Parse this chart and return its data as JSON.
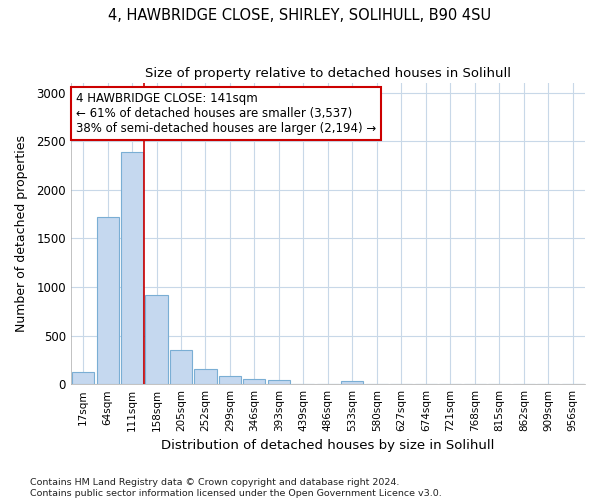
{
  "title1": "4, HAWBRIDGE CLOSE, SHIRLEY, SOLIHULL, B90 4SU",
  "title2": "Size of property relative to detached houses in Solihull",
  "xlabel": "Distribution of detached houses by size in Solihull",
  "ylabel": "Number of detached properties",
  "bar_color": "#c5d8ef",
  "bar_edge_color": "#7aaed4",
  "categories": [
    "17sqm",
    "64sqm",
    "111sqm",
    "158sqm",
    "205sqm",
    "252sqm",
    "299sqm",
    "346sqm",
    "393sqm",
    "439sqm",
    "486sqm",
    "533sqm",
    "580sqm",
    "627sqm",
    "674sqm",
    "721sqm",
    "768sqm",
    "815sqm",
    "862sqm",
    "909sqm",
    "956sqm"
  ],
  "values": [
    130,
    1720,
    2390,
    920,
    350,
    160,
    80,
    50,
    40,
    0,
    0,
    30,
    0,
    0,
    0,
    0,
    0,
    0,
    0,
    0,
    0
  ],
  "ylim": [
    0,
    3100
  ],
  "yticks": [
    0,
    500,
    1000,
    1500,
    2000,
    2500,
    3000
  ],
  "property_line_bin": 3,
  "annotation_text": "4 HAWBRIDGE CLOSE: 141sqm\n← 61% of detached houses are smaller (3,537)\n38% of semi-detached houses are larger (2,194) →",
  "annotation_box_color": "#ffffff",
  "annotation_box_edge": "#cc0000",
  "footer_text": "Contains HM Land Registry data © Crown copyright and database right 2024.\nContains public sector information licensed under the Open Government Licence v3.0.",
  "bg_color": "#ffffff",
  "plot_bg_color": "#ffffff",
  "grid_color": "#c8d8e8"
}
